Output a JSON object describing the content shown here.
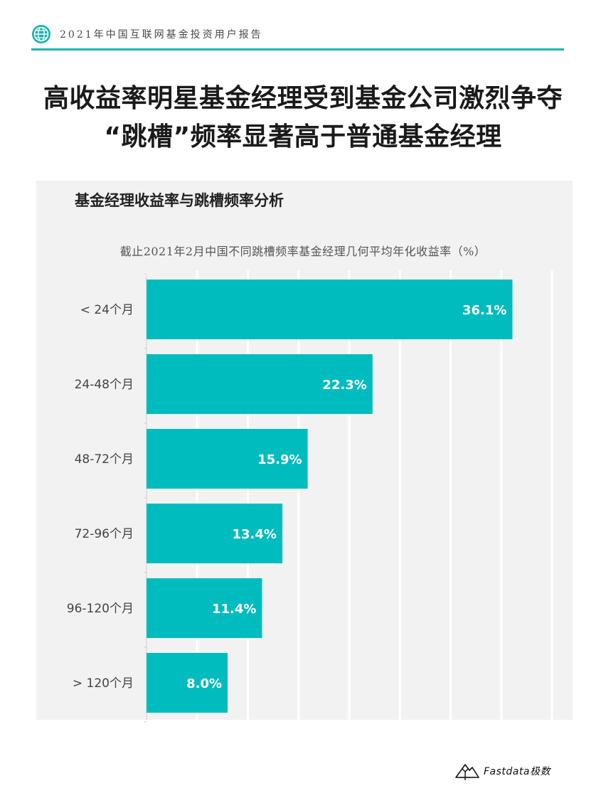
{
  "header": {
    "report_title": "2021年中国互联网基金投资用户报告",
    "icon": "globe-icon"
  },
  "headline": {
    "line1": "高收益率明星基金经理受到基金公司激烈争夺",
    "line2": "“跳槽”频率显著高于普通基金经理"
  },
  "chart_heading": "基金经理收益率与跳槽频率分析",
  "chart_data": {
    "type": "bar",
    "orientation": "horizontal",
    "title": "截止2021年2月中国不同跳槽频率基金经理几何平均年化收益率（%）",
    "categories": [
      "< 24个月",
      "24-48个月",
      "48-72个月",
      "72-96个月",
      "96-120个月",
      "> 120个月"
    ],
    "values": [
      36.1,
      22.3,
      15.9,
      13.4,
      11.4,
      8.0
    ],
    "labels": [
      "36.1%",
      "22.3%",
      "15.9%",
      "13.4%",
      "11.4%",
      "8.0%"
    ],
    "xlim": [
      0,
      40
    ],
    "grid": true,
    "bar_color": "#00bcbf",
    "label_color": "#ffffff"
  },
  "footer": {
    "brand": "Fastdata极数",
    "icon": "mountain-logo-icon"
  }
}
